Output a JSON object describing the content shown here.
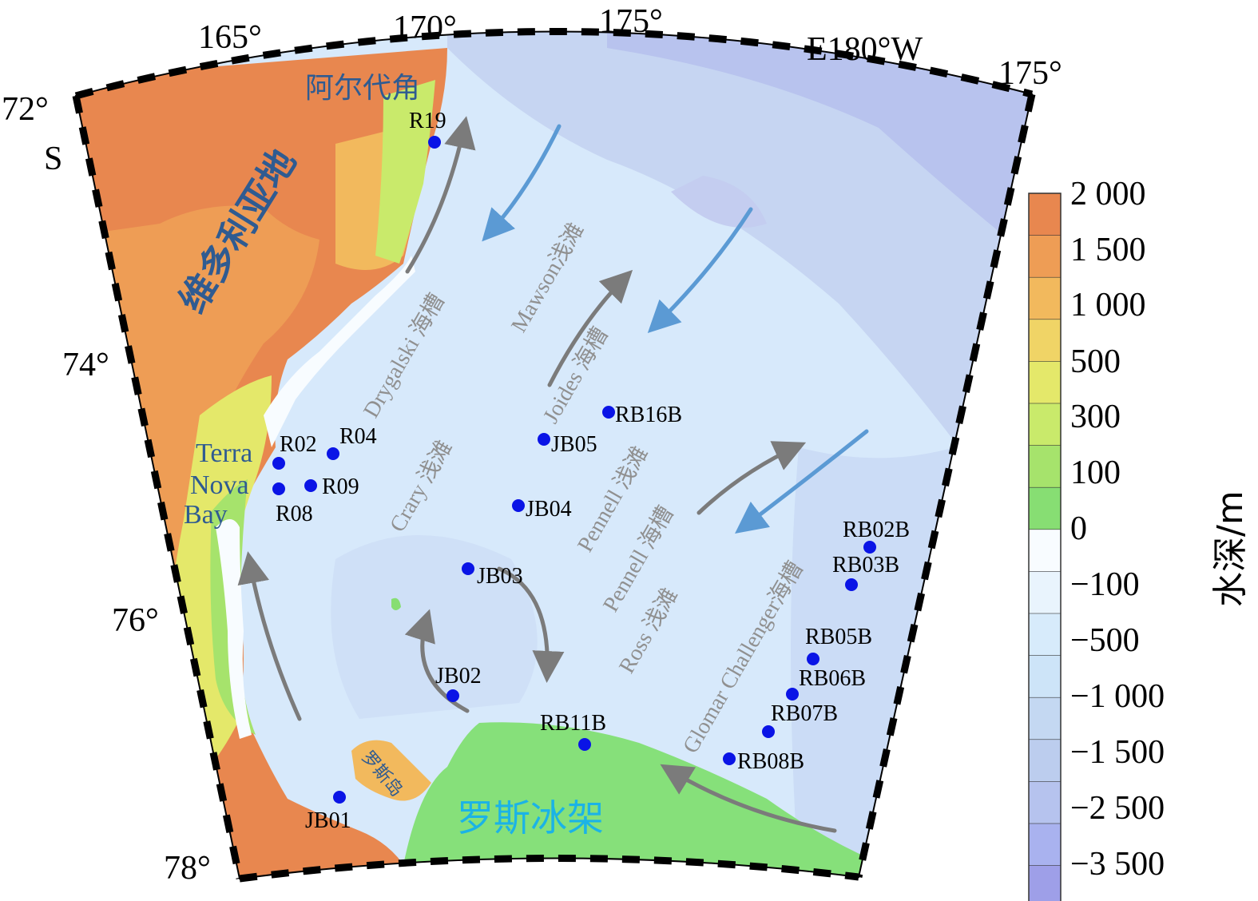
{
  "axes": {
    "lon_labels": [
      "165°",
      "170°",
      "175°",
      "E180°W",
      "175°"
    ],
    "lat_labels": [
      "72°",
      "74°",
      "76°",
      "78°"
    ],
    "lat_hemisphere": "S"
  },
  "places": {
    "victoria_land": "维多利亚地",
    "cape_adare": "阿尔代角",
    "terra_nova_bay": [
      "Terra",
      "Nova",
      "Bay"
    ],
    "ross_island": "罗斯岛",
    "ross_ice_shelf": "罗斯冰架"
  },
  "features": {
    "drygalski": "Drygalski 海槽",
    "mawson": "Mawson浅滩",
    "joides": "Joides 海槽",
    "crary": "Crary 浅滩",
    "pennell_bank": "Pennell 浅滩",
    "pennell_trough": "Pennell 海槽",
    "ross_bank": "Ross 浅滩",
    "glomar": "Glomar Challenger海槽"
  },
  "stations": [
    {
      "id": "R19"
    },
    {
      "id": "R02"
    },
    {
      "id": "R04"
    },
    {
      "id": "R09"
    },
    {
      "id": "R08"
    },
    {
      "id": "JB05"
    },
    {
      "id": "RB16B"
    },
    {
      "id": "JB04"
    },
    {
      "id": "JB03"
    },
    {
      "id": "JB02"
    },
    {
      "id": "JB01"
    },
    {
      "id": "RB11B"
    },
    {
      "id": "RB02B"
    },
    {
      "id": "RB03B"
    },
    {
      "id": "RB05B"
    },
    {
      "id": "RB06B"
    },
    {
      "id": "RB07B"
    },
    {
      "id": "RB08B"
    }
  ],
  "legend": {
    "title": "水深/m",
    "labels": [
      "2 000",
      "1 500",
      "1 000",
      "500",
      "300",
      "100",
      "0",
      "−100",
      "−500",
      "−1 000",
      "−1 500",
      "−2 500",
      "−3 500"
    ],
    "colors": [
      "#e8874f",
      "#ee9d55",
      "#f2b95d",
      "#f0d466",
      "#e4e86a",
      "#c9ea6b",
      "#a6e36c",
      "#87de73",
      "#f8fcff",
      "#e9f4fd",
      "#d7ebfb",
      "#cde4f8",
      "#c4d8f2",
      "#bccdee",
      "#b6c3ee",
      "#a9b2ef",
      "#9e9fe8"
    ]
  },
  "colors": {
    "station": "#0a14e6",
    "warm_arrow": "#7b7b7b",
    "cold_arrow": "#5b9ad4",
    "sea": "#d7e9fb",
    "ice_shelf": "#86e07a"
  }
}
